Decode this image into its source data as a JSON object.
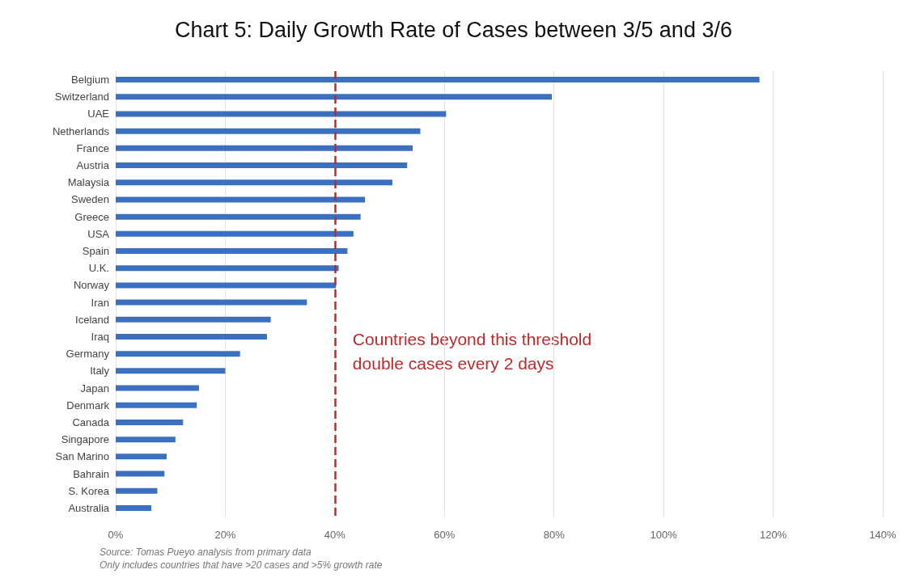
{
  "chart_data": {
    "type": "bar",
    "orientation": "horizontal",
    "title": "Chart 5: Daily Growth Rate of Cases between 3/5 and 3/6",
    "categories": [
      "Belgium",
      "Switzerland",
      "UAE",
      "Netherlands",
      "France",
      "Austria",
      "Malaysia",
      "Sweden",
      "Greece",
      "USA",
      "Spain",
      "U.K.",
      "Norway",
      "Iran",
      "Iceland",
      "Iraq",
      "Germany",
      "Italy",
      "Japan",
      "Denmark",
      "Canada",
      "Singapore",
      "San Marino",
      "Bahrain",
      "S. Korea",
      "Australia"
    ],
    "values": [
      117.5,
      79.6,
      60.3,
      55.6,
      54.2,
      53.2,
      50.5,
      45.5,
      44.7,
      43.4,
      42.3,
      40.7,
      40.2,
      34.9,
      28.3,
      27.6,
      22.7,
      20.0,
      15.2,
      14.8,
      12.3,
      10.9,
      9.3,
      8.9,
      7.6,
      6.5
    ],
    "color": "#3b6fc0",
    "xlim": [
      0,
      140
    ],
    "xticks": [
      {
        "value": 0,
        "label": "0%"
      },
      {
        "value": 20,
        "label": "20%"
      },
      {
        "value": 40,
        "label": "40%"
      },
      {
        "value": 60,
        "label": "60%"
      },
      {
        "value": 80,
        "label": "80%"
      },
      {
        "value": 100,
        "label": "100%"
      },
      {
        "value": 120,
        "label": "120%"
      },
      {
        "value": 140,
        "label": "140%"
      }
    ],
    "grid": "x",
    "ref_lines": [
      {
        "axis": "x",
        "value": 40,
        "label": "Countries beyond this threshold\ndouble cases every 2 days",
        "color": "#c0282a",
        "line_style": "dashed"
      }
    ],
    "annotations": [
      "Source: Tomas Pueyo analysis from primary data",
      "Only includes countries that have >20 cases and >5% growth rate"
    ]
  }
}
